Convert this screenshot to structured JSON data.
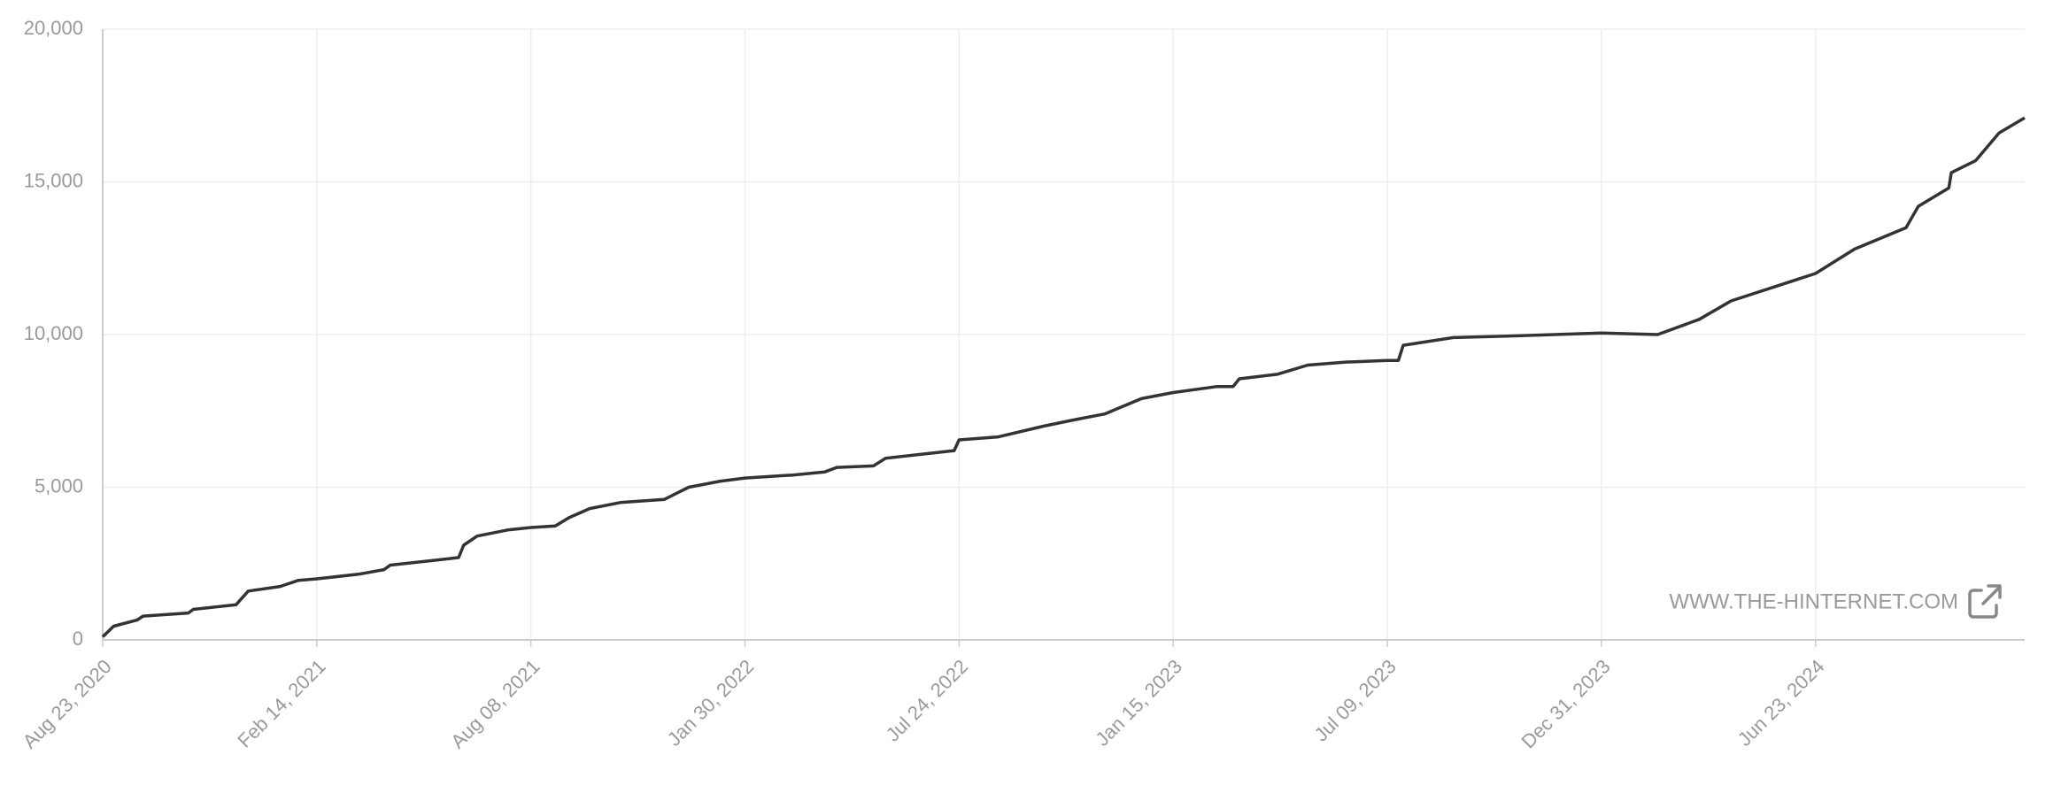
{
  "chart_data": {
    "type": "line",
    "watermark": "WWW.THE-HINTERNET.COM",
    "grid": true,
    "xlim": [
      "2020-08-23",
      "2024-12-11"
    ],
    "xticks": [
      {
        "value": "2020-08-23",
        "label": "Aug 23, 2020"
      },
      {
        "value": "2021-02-14",
        "label": "Feb 14, 2021"
      },
      {
        "value": "2021-08-08",
        "label": "Aug 08, 2021"
      },
      {
        "value": "2022-01-30",
        "label": "Jan 30, 2022"
      },
      {
        "value": "2022-07-24",
        "label": "Jul 24, 2022"
      },
      {
        "value": "2023-01-15",
        "label": "Jan 15, 2023"
      },
      {
        "value": "2023-07-09",
        "label": "Jul 09, 2023"
      },
      {
        "value": "2023-12-31",
        "label": "Dec 31, 2023"
      },
      {
        "value": "2024-06-23",
        "label": "Jun 23, 2024"
      }
    ],
    "ylim": [
      0,
      20000
    ],
    "yticks": [
      0,
      {
        "value": 5000,
        "label": "5,000"
      },
      {
        "value": 10000,
        "label": "10,000"
      },
      {
        "value": 15000,
        "label": "15,000"
      },
      {
        "value": 20000,
        "label": "20,000"
      }
    ],
    "color": "#333333",
    "x": [
      "2020-08-23",
      "2020-09-01",
      "2020-09-20",
      "2020-09-25",
      "2020-11-01",
      "2020-11-05",
      "2020-12-10",
      "2020-12-20",
      "2021-01-15",
      "2021-01-30",
      "2021-02-14",
      "2021-03-20",
      "2021-04-10",
      "2021-04-15",
      "2021-05-20",
      "2021-06-10",
      "2021-06-14",
      "2021-06-25",
      "2021-07-20",
      "2021-08-08",
      "2021-08-28",
      "2021-09-08",
      "2021-09-25",
      "2021-10-20",
      "2021-11-25",
      "2021-12-15",
      "2022-01-10",
      "2022-01-30",
      "2022-03-10",
      "2022-04-05",
      "2022-04-15",
      "2022-05-15",
      "2022-05-25",
      "2022-07-20",
      "2022-07-24",
      "2022-08-25",
      "2022-10-01",
      "2022-10-25",
      "2022-11-20",
      "2022-12-20",
      "2023-01-15",
      "2023-02-20",
      "2023-03-05",
      "2023-03-10",
      "2023-04-10",
      "2023-05-05",
      "2023-06-05",
      "2023-07-09",
      "2023-07-18",
      "2023-07-22",
      "2023-09-01",
      "2023-10-15",
      "2023-12-31",
      "2024-02-15",
      "2024-03-20",
      "2024-04-15",
      "2024-06-23",
      "2024-07-25",
      "2024-09-05",
      "2024-09-15",
      "2024-10-10",
      "2024-10-12",
      "2024-11-01",
      "2024-11-20",
      "2024-12-11"
    ],
    "values": [
      100,
      450,
      650,
      780,
      880,
      1000,
      1150,
      1600,
      1750,
      1950,
      2000,
      2150,
      2300,
      2450,
      2600,
      2700,
      3100,
      3400,
      3600,
      3680,
      3730,
      4000,
      4300,
      4500,
      4600,
      5000,
      5200,
      5300,
      5400,
      5500,
      5650,
      5700,
      5950,
      6200,
      6550,
      6650,
      7000,
      7200,
      7400,
      7900,
      8100,
      8300,
      8300,
      8550,
      8700,
      9000,
      9100,
      9150,
      9150,
      9650,
      9900,
      9950,
      10050,
      10000,
      10500,
      11100,
      12000,
      12800,
      13500,
      14200,
      14800,
      15300,
      15700,
      16600,
      17100
    ]
  }
}
